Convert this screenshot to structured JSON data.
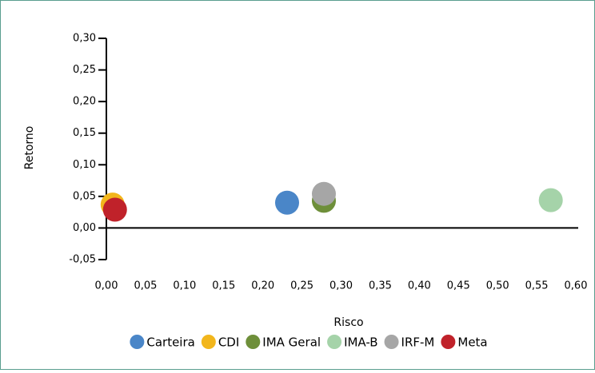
{
  "chart_data": {
    "type": "scatter",
    "xlabel": "Risco",
    "ylabel": "Retorno",
    "xlim": [
      0,
      0.6
    ],
    "ylim": [
      -0.05,
      0.3
    ],
    "xticks": [
      {
        "value": 0,
        "label": "0,00"
      },
      {
        "value": 0.05,
        "label": "0,05"
      },
      {
        "value": 0.1,
        "label": "0,10"
      },
      {
        "value": 0.15,
        "label": "0,15"
      },
      {
        "value": 0.2,
        "label": "0,20"
      },
      {
        "value": 0.25,
        "label": "0,25"
      },
      {
        "value": 0.3,
        "label": "0,30"
      },
      {
        "value": 0.35,
        "label": "0,35"
      },
      {
        "value": 0.4,
        "label": "0,40"
      },
      {
        "value": 0.45,
        "label": "0,45"
      },
      {
        "value": 0.5,
        "label": "0,50"
      },
      {
        "value": 0.55,
        "label": "0,55"
      },
      {
        "value": 0.6,
        "label": "0,60"
      }
    ],
    "yticks": [
      {
        "value": -0.05,
        "label": "-0,05"
      },
      {
        "value": 0,
        "label": "0,00"
      },
      {
        "value": 0.05,
        "label": "0,05"
      },
      {
        "value": 0.1,
        "label": "0,10"
      },
      {
        "value": 0.15,
        "label": "0,15"
      },
      {
        "value": 0.2,
        "label": "0,20"
      },
      {
        "value": 0.25,
        "label": "0,25"
      },
      {
        "value": 0.3,
        "label": "0,30"
      }
    ],
    "legend": "bottom",
    "series": [
      {
        "name": "Carteira",
        "color": "#4a86c8",
        "x": [
          0.231
        ],
        "values": [
          0.04
        ]
      },
      {
        "name": "CDI",
        "color": "#f2b61c",
        "x": [
          0.008
        ],
        "values": [
          0.037
        ]
      },
      {
        "name": "IMA Geral",
        "color": "#6e8f3a",
        "x": [
          0.278
        ],
        "values": [
          0.043
        ]
      },
      {
        "name": "IMA-B",
        "color": "#a5d3a9",
        "x": [
          0.568
        ],
        "values": [
          0.044
        ]
      },
      {
        "name": "IRF-M",
        "color": "#a6a6a6",
        "x": [
          0.278
        ],
        "values": [
          0.054
        ]
      },
      {
        "name": "Meta",
        "color": "#c0222a",
        "x": [
          0.011
        ],
        "values": [
          0.029
        ]
      }
    ]
  }
}
